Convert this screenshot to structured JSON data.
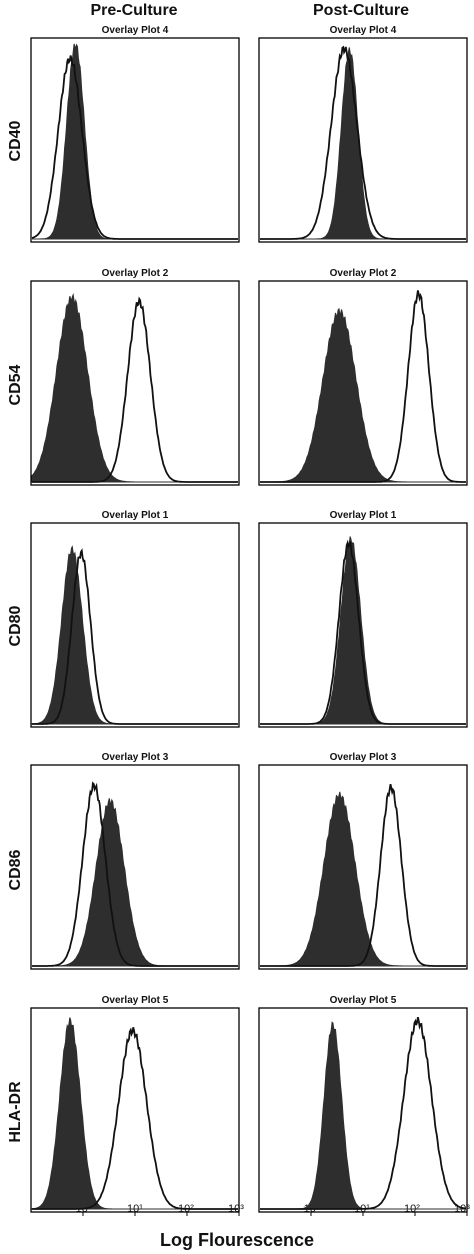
{
  "column_headers": [
    "Pre-Culture",
    "Post-Culture"
  ],
  "row_labels": [
    "CD40",
    "CD54",
    "CD80",
    "CD86",
    "HLA-DR"
  ],
  "x_axis_label": "Log Flourescence",
  "tick_labels": {
    "pre": [
      "10⁰",
      "10¹",
      "10²",
      "10³"
    ],
    "post": [
      "10⁰",
      "10¹",
      "10²",
      "10³"
    ]
  },
  "colors": {
    "filled": "#2e2e2e",
    "outline": "#111111",
    "frame": "#000000"
  },
  "chart_data": {
    "type": "area",
    "x_scale": "log",
    "xlim": [
      0.1,
      1000
    ],
    "x_ticks": [
      1,
      10,
      100,
      1000
    ],
    "panels": [
      {
        "row": "CD40",
        "column": "Pre-Culture",
        "title": "Overlay Plot 4",
        "series": [
          {
            "fill": true,
            "peak_x": 0.7,
            "width": 0.17,
            "amp": 1.0
          },
          {
            "fill": false,
            "peak_x": 0.55,
            "width": 0.23,
            "amp": 0.93
          }
        ]
      },
      {
        "row": "CD40",
        "column": "Post-Culture",
        "title": "Overlay Plot 4",
        "series": [
          {
            "fill": true,
            "peak_x": 5.5,
            "width": 0.16,
            "amp": 0.97
          },
          {
            "fill": false,
            "peak_x": 4.3,
            "width": 0.25,
            "amp": 0.98
          }
        ]
      },
      {
        "row": "CD54",
        "column": "Pre-Culture",
        "title": "Overlay Plot 2",
        "series": [
          {
            "fill": true,
            "peak_x": 0.6,
            "width": 0.3,
            "amp": 0.95
          },
          {
            "fill": false,
            "peak_x": 12,
            "width": 0.22,
            "amp": 0.93
          }
        ]
      },
      {
        "row": "CD54",
        "column": "Post-Culture",
        "title": "Overlay Plot 2",
        "series": [
          {
            "fill": true,
            "peak_x": 3.5,
            "width": 0.32,
            "amp": 0.88
          },
          {
            "fill": false,
            "peak_x": 120,
            "width": 0.2,
            "amp": 0.97
          }
        ]
      },
      {
        "row": "CD80",
        "column": "Pre-Culture",
        "title": "Overlay Plot 1",
        "series": [
          {
            "fill": true,
            "peak_x": 0.6,
            "width": 0.2,
            "amp": 0.9
          },
          {
            "fill": false,
            "peak_x": 0.9,
            "width": 0.18,
            "amp": 0.88
          }
        ]
      },
      {
        "row": "CD80",
        "column": "Post-Culture",
        "title": "Overlay Plot 1",
        "series": [
          {
            "fill": true,
            "peak_x": 5.8,
            "width": 0.19,
            "amp": 0.95
          },
          {
            "fill": false,
            "peak_x": 5.3,
            "width": 0.19,
            "amp": 0.93
          }
        ]
      },
      {
        "row": "CD86",
        "column": "Pre-Culture",
        "title": "Overlay Plot 3",
        "series": [
          {
            "fill": true,
            "peak_x": 3.3,
            "width": 0.27,
            "amp": 0.85
          },
          {
            "fill": false,
            "peak_x": 1.6,
            "width": 0.22,
            "amp": 0.93
          }
        ]
      },
      {
        "row": "CD86",
        "column": "Post-Culture",
        "title": "Overlay Plot 3",
        "series": [
          {
            "fill": true,
            "peak_x": 3.5,
            "width": 0.3,
            "amp": 0.88
          },
          {
            "fill": false,
            "peak_x": 35,
            "width": 0.2,
            "amp": 0.92
          }
        ]
      },
      {
        "row": "HLA-DR",
        "column": "Pre-Culture",
        "title": "Overlay Plot 5",
        "series": [
          {
            "fill": true,
            "peak_x": 0.55,
            "width": 0.2,
            "amp": 0.97
          },
          {
            "fill": false,
            "peak_x": 9,
            "width": 0.27,
            "amp": 0.92
          }
        ]
      },
      {
        "row": "HLA-DR",
        "column": "Post-Culture",
        "title": "Overlay Plot 5",
        "series": [
          {
            "fill": true,
            "peak_x": 2.6,
            "width": 0.17,
            "amp": 0.95
          },
          {
            "fill": false,
            "peak_x": 115,
            "width": 0.27,
            "amp": 0.97
          }
        ]
      }
    ]
  }
}
